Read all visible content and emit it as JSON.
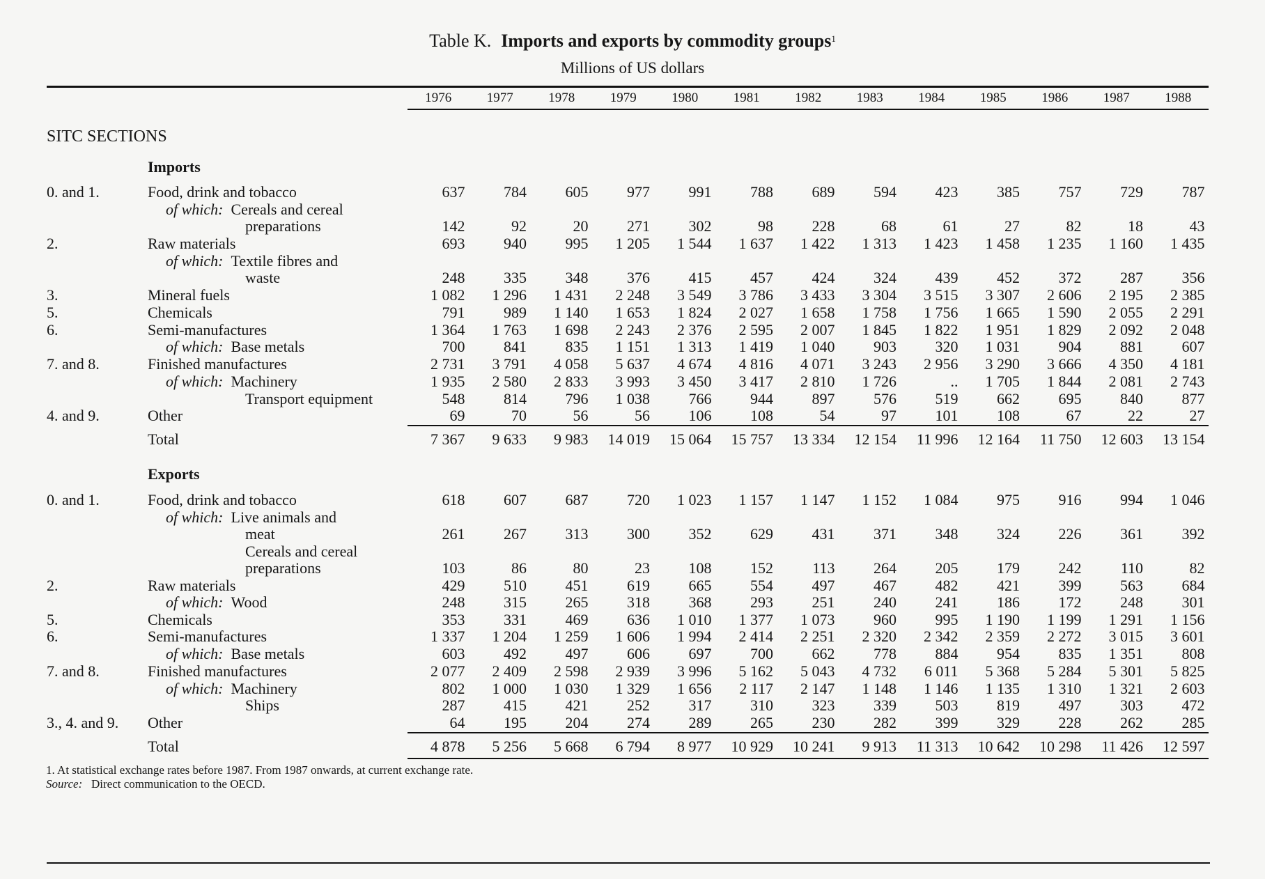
{
  "table": {
    "label": "Table K.",
    "title": "Imports and exports by commodity groups",
    "title_note": "1",
    "unit": "Millions of US dollars",
    "section_header": "SITC SECTIONS",
    "years": [
      "1976",
      "1977",
      "1978",
      "1979",
      "1980",
      "1981",
      "1982",
      "1983",
      "1984",
      "1985",
      "1986",
      "1987",
      "1988"
    ],
    "rows": [
      {
        "type": "heading",
        "label": "Imports"
      },
      {
        "type": "item",
        "code": "0. and 1.",
        "label": "Food, drink and tobacco",
        "values": [
          "637",
          "784",
          "605",
          "977",
          "991",
          "788",
          "689",
          "594",
          "423",
          "385",
          "757",
          "729",
          "787"
        ]
      },
      {
        "type": "ofwhich",
        "prefix": "of which:",
        "label": "Cereals and cereal"
      },
      {
        "type": "cont",
        "label": "preparations",
        "values": [
          "142",
          "92",
          "20",
          "271",
          "302",
          "98",
          "228",
          "68",
          "61",
          "27",
          "82",
          "18",
          "43"
        ]
      },
      {
        "type": "item",
        "code": "2.",
        "label": "Raw materials",
        "values": [
          "693",
          "940",
          "995",
          "1 205",
          "1 544",
          "1 637",
          "1 422",
          "1 313",
          "1 423",
          "1 458",
          "1 235",
          "1 160",
          "1 435"
        ]
      },
      {
        "type": "ofwhich",
        "prefix": "of which:",
        "label": "Textile fibres and"
      },
      {
        "type": "cont",
        "label": "waste",
        "values": [
          "248",
          "335",
          "348",
          "376",
          "415",
          "457",
          "424",
          "324",
          "439",
          "452",
          "372",
          "287",
          "356"
        ]
      },
      {
        "type": "item",
        "code": "3.",
        "label": "Mineral fuels",
        "values": [
          "1 082",
          "1 296",
          "1 431",
          "2 248",
          "3 549",
          "3 786",
          "3 433",
          "3 304",
          "3 515",
          "3 307",
          "2 606",
          "2 195",
          "2 385"
        ]
      },
      {
        "type": "item",
        "code": "5.",
        "label": "Chemicals",
        "values": [
          "791",
          "989",
          "1 140",
          "1 653",
          "1 824",
          "2 027",
          "1 658",
          "1 758",
          "1 756",
          "1 665",
          "1 590",
          "2 055",
          "2 291"
        ]
      },
      {
        "type": "item",
        "code": "6.",
        "label": "Semi-manufactures",
        "values": [
          "1 364",
          "1 763",
          "1 698",
          "2 243",
          "2 376",
          "2 595",
          "2 007",
          "1 845",
          "1 822",
          "1 951",
          "1 829",
          "2 092",
          "2 048"
        ]
      },
      {
        "type": "ofwhich",
        "prefix": "of which:",
        "label": "Base metals",
        "values": [
          "700",
          "841",
          "835",
          "1 151",
          "1 313",
          "1 419",
          "1 040",
          "903",
          "320",
          "1 031",
          "904",
          "881",
          "607"
        ]
      },
      {
        "type": "item",
        "code": "7. and 8.",
        "label": "Finished manufactures",
        "values": [
          "2 731",
          "3 791",
          "4 058",
          "5 637",
          "4 674",
          "4 816",
          "4 071",
          "3 243",
          "2 956",
          "3 290",
          "3 666",
          "4 350",
          "4 181"
        ]
      },
      {
        "type": "ofwhich",
        "prefix": "of which:",
        "label": "Machinery",
        "values": [
          "1 935",
          "2 580",
          "2 833",
          "3 993",
          "3 450",
          "3 417",
          "2 810",
          "1 726",
          "..",
          "1 705",
          "1 844",
          "2 081",
          "2 743"
        ]
      },
      {
        "type": "cont",
        "label": "Transport equipment",
        "values": [
          "548",
          "814",
          "796",
          "1 038",
          "766",
          "944",
          "897",
          "576",
          "519",
          "662",
          "695",
          "840",
          "877"
        ]
      },
      {
        "type": "item",
        "code": "4. and 9.",
        "label": "Other",
        "values": [
          "69",
          "70",
          "56",
          "56",
          "106",
          "108",
          "54",
          "97",
          "101",
          "108",
          "67",
          "22",
          "27"
        ]
      },
      {
        "type": "total",
        "label": "Total",
        "values": [
          "7 367",
          "9 633",
          "9 983",
          "14 019",
          "15 064",
          "15 757",
          "13 334",
          "12 154",
          "11 996",
          "12 164",
          "11 750",
          "12 603",
          "13 154"
        ]
      },
      {
        "type": "heading",
        "label": "Exports"
      },
      {
        "type": "item",
        "code": "0. and 1.",
        "label": "Food, drink and tobacco",
        "values": [
          "618",
          "607",
          "687",
          "720",
          "1 023",
          "1 157",
          "1 147",
          "1 152",
          "1 084",
          "975",
          "916",
          "994",
          "1 046"
        ]
      },
      {
        "type": "ofwhich",
        "prefix": "of which:",
        "label": "Live animals and"
      },
      {
        "type": "cont",
        "label": "meat",
        "values": [
          "261",
          "267",
          "313",
          "300",
          "352",
          "629",
          "431",
          "371",
          "348",
          "324",
          "226",
          "361",
          "392"
        ]
      },
      {
        "type": "cont",
        "label": "Cereals and cereal"
      },
      {
        "type": "cont",
        "label": "preparations",
        "values": [
          "103",
          "86",
          "80",
          "23",
          "108",
          "152",
          "113",
          "264",
          "205",
          "179",
          "242",
          "110",
          "82"
        ]
      },
      {
        "type": "item",
        "code": "2.",
        "label": "Raw materials",
        "values": [
          "429",
          "510",
          "451",
          "619",
          "665",
          "554",
          "497",
          "467",
          "482",
          "421",
          "399",
          "563",
          "684"
        ]
      },
      {
        "type": "ofwhich",
        "prefix": "of which:",
        "label": "Wood",
        "values": [
          "248",
          "315",
          "265",
          "318",
          "368",
          "293",
          "251",
          "240",
          "241",
          "186",
          "172",
          "248",
          "301"
        ]
      },
      {
        "type": "item",
        "code": "5.",
        "label": "Chemicals",
        "values": [
          "353",
          "331",
          "469",
          "636",
          "1 010",
          "1 377",
          "1 073",
          "960",
          "995",
          "1 190",
          "1 199",
          "1 291",
          "1 156"
        ]
      },
      {
        "type": "item",
        "code": "6.",
        "label": "Semi-manufactures",
        "values": [
          "1 337",
          "1 204",
          "1 259",
          "1 606",
          "1 994",
          "2 414",
          "2 251",
          "2 320",
          "2 342",
          "2 359",
          "2 272",
          "3 015",
          "3 601"
        ]
      },
      {
        "type": "ofwhich",
        "prefix": "of which:",
        "label": "Base metals",
        "values": [
          "603",
          "492",
          "497",
          "606",
          "697",
          "700",
          "662",
          "778",
          "884",
          "954",
          "835",
          "1 351",
          "808"
        ]
      },
      {
        "type": "item",
        "code": "7. and 8.",
        "label": "Finished manufactures",
        "values": [
          "2 077",
          "2 409",
          "2 598",
          "2 939",
          "3 996",
          "5 162",
          "5 043",
          "4 732",
          "6 011",
          "5 368",
          "5 284",
          "5 301",
          "5 825"
        ]
      },
      {
        "type": "ofwhich",
        "prefix": "of which:",
        "label": "Machinery",
        "values": [
          "802",
          "1 000",
          "1 030",
          "1 329",
          "1 656",
          "2 117",
          "2 147",
          "1 148",
          "1 146",
          "1 135",
          "1 310",
          "1 321",
          "2 603"
        ]
      },
      {
        "type": "cont",
        "label": "Ships",
        "values": [
          "287",
          "415",
          "421",
          "252",
          "317",
          "310",
          "323",
          "339",
          "503",
          "819",
          "497",
          "303",
          "472"
        ]
      },
      {
        "type": "item",
        "code": "3., 4. and 9.",
        "label": "Other",
        "values": [
          "64",
          "195",
          "204",
          "274",
          "289",
          "265",
          "230",
          "282",
          "399",
          "329",
          "228",
          "262",
          "285"
        ]
      },
      {
        "type": "total",
        "label": "Total",
        "values": [
          "4 878",
          "5 256",
          "5 668",
          "6 794",
          "8 977",
          "10 929",
          "10 241",
          "9 913",
          "11 313",
          "10 642",
          "10 298",
          "11 426",
          "12 597"
        ]
      }
    ]
  },
  "footnotes": {
    "note1": "1.  At statistical exchange rates before 1987. From 1987 onwards, at current exchange rate.",
    "source_label": "Source:",
    "source_text": "Direct communication to the OECD."
  }
}
